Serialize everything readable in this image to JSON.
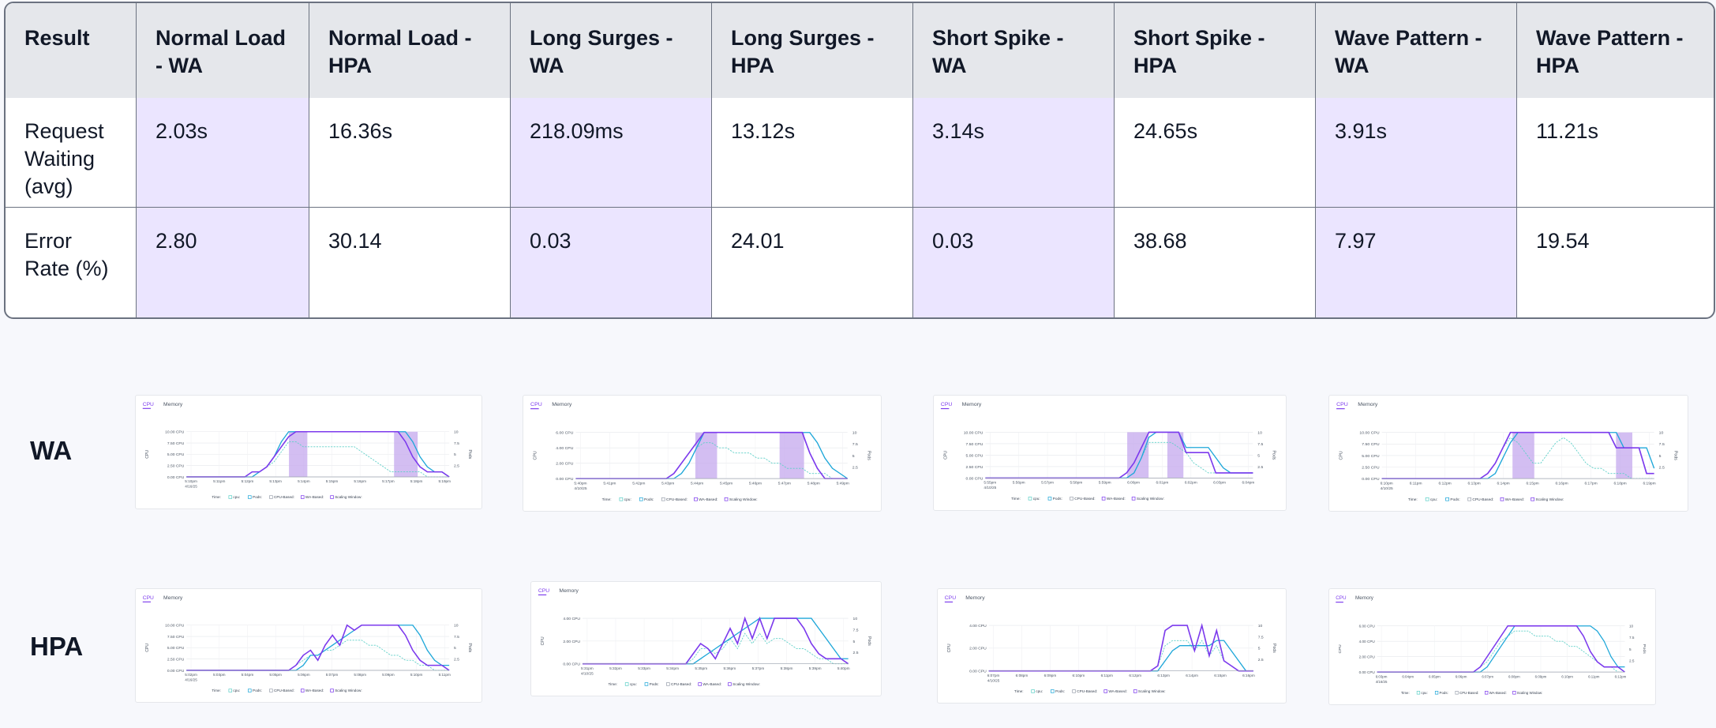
{
  "table": {
    "headers": [
      "Result",
      "Normal Load - WA",
      "Normal Load - HPA",
      "Long Surges - WA",
      "Long Surges - HPA",
      "Short Spike - WA",
      "Short Spike - HPA",
      "Wave Pattern - WA",
      "Wave Pattern - HPA"
    ],
    "rows": [
      {
        "label": "Request Waiting (avg)",
        "values": [
          "2.03s",
          "16.36s",
          "218.09ms",
          "13.12s",
          "3.14s",
          "24.65s",
          "3.91s",
          "11.21s"
        ]
      },
      {
        "label": "Error Rate (%)",
        "values": [
          "2.80",
          "30.14",
          "0.03",
          "24.01",
          "0.03",
          "38.68",
          "7.97",
          "19.54"
        ]
      }
    ]
  },
  "row_labels": {
    "wa": "WA",
    "hpa": "HPA"
  },
  "colors": {
    "highlight": "#ebe5ff",
    "header_bg": "#e5e7eb",
    "wa_line": "#7c3aed",
    "hpa_line": "#1ea7d9",
    "cpu_dashed": "#5fd0c8",
    "scaling_window": "#c4a8ee"
  },
  "chart_common": {
    "tabs": [
      "CPU",
      "Memory"
    ],
    "y_axis_label": "CPU",
    "y2_axis_label": "Pods",
    "y2_ticks": [
      "10",
      "7.5",
      "5",
      "2.5"
    ],
    "legend": [
      "Time:",
      "cpu:",
      "Pods:",
      "CPU-Based:",
      "WA-Based:",
      "Scaling Window:"
    ]
  },
  "chart_data": [
    {
      "type": "line",
      "name": "Normal Load - WA",
      "yticks": [
        "10.00 CPU",
        "7.50 CPU",
        "5.00 CPU",
        "2.50 CPU",
        "0.00 CPU"
      ],
      "xticks": [
        "5:10pm",
        "5:11pm",
        "5:12pm",
        "5:13pm",
        "5:14pm",
        "5:15pm",
        "5:16pm",
        "5:17pm",
        "5:18pm",
        "5:19pm"
      ],
      "date": "4/16/25",
      "series": {
        "wa": [
          0,
          0,
          0,
          0,
          0,
          0,
          0,
          0,
          0,
          1,
          1,
          2,
          4,
          6,
          8,
          9,
          9,
          9,
          9,
          9,
          9,
          9,
          9,
          9,
          9,
          9,
          9,
          9,
          9,
          9,
          7,
          4,
          2,
          1,
          1,
          1,
          0
        ],
        "hpa": [
          0,
          0,
          0,
          0,
          0,
          0,
          0,
          0,
          0,
          0,
          1,
          2,
          4,
          7,
          9,
          9,
          9,
          9,
          9,
          9,
          9,
          9,
          9,
          9,
          9,
          9,
          9,
          9,
          9,
          9,
          9,
          7,
          4,
          2,
          1,
          1,
          0
        ],
        "cpu": [
          0,
          0,
          0,
          0,
          0,
          0,
          0,
          0,
          0,
          0,
          1,
          2,
          3,
          5,
          7,
          7,
          6,
          6,
          6,
          6,
          6,
          6,
          6,
          6,
          5,
          4,
          3,
          2,
          1,
          1,
          1,
          1,
          1,
          0,
          0,
          0,
          0
        ]
      },
      "windows": [
        [
          0.39,
          0.46
        ],
        [
          0.79,
          0.88
        ]
      ]
    },
    {
      "type": "line",
      "name": "Long Surges - WA",
      "yticks": [
        "6.00 CPU",
        "4.00 CPU",
        "2.00 CPU",
        "0.00 CPU"
      ],
      "xticks": [
        "5:40pm",
        "5:41pm",
        "5:42pm",
        "5:43pm",
        "5:44pm",
        "5:45pm",
        "5:46pm",
        "5:47pm",
        "5:48pm",
        "5:49pm"
      ],
      "date": "4/10/25",
      "series": {
        "wa": [
          0,
          0,
          0,
          0,
          0,
          0,
          0,
          0,
          0,
          0,
          0,
          0,
          0,
          1,
          3,
          5,
          7,
          9,
          9,
          9,
          9,
          9,
          9,
          9,
          9,
          9,
          9,
          9,
          9,
          9,
          9,
          5,
          2,
          0,
          0,
          0,
          0
        ],
        "hpa": [
          0,
          0,
          0,
          0,
          0,
          0,
          0,
          0,
          0,
          0,
          0,
          0,
          0,
          0,
          1,
          3,
          6,
          9,
          9,
          9,
          9,
          9,
          9,
          9,
          9,
          9,
          9,
          9,
          9,
          9,
          9,
          9,
          7,
          4,
          2,
          1,
          0
        ],
        "cpu": [
          0,
          0,
          0,
          0,
          0,
          0,
          0,
          0,
          0,
          0,
          0,
          0,
          0,
          0,
          1,
          3,
          6,
          7,
          7,
          6,
          6,
          5,
          5,
          5,
          4,
          4,
          3,
          3,
          2,
          2,
          2,
          1,
          1,
          1,
          0,
          0,
          0
        ]
      },
      "windows": [
        [
          0.44,
          0.52
        ],
        [
          0.75,
          0.84
        ]
      ]
    },
    {
      "type": "line",
      "name": "Short Spike - WA",
      "yticks": [
        "10.00 CPU",
        "7.50 CPU",
        "5.00 CPU",
        "2.50 CPU",
        "0.00 CPU"
      ],
      "xticks": [
        "5:55pm",
        "5:56pm",
        "5:57pm",
        "5:58pm",
        "5:59pm",
        "6:00pm",
        "6:01pm",
        "6:02pm",
        "6:03pm",
        "6:04pm"
      ],
      "date": "4/10/25",
      "series": {
        "wa": [
          0,
          0,
          0,
          0,
          0,
          0,
          0,
          0,
          0,
          0,
          0,
          0,
          0,
          0,
          0,
          0,
          0,
          0,
          0,
          1,
          3,
          6,
          9,
          9,
          9,
          9,
          9,
          5,
          5,
          5,
          5,
          1,
          1,
          1,
          1,
          1,
          1
        ],
        "hpa": [
          0,
          0,
          0,
          0,
          0,
          0,
          0,
          0,
          0,
          0,
          0,
          0,
          0,
          0,
          0,
          0,
          0,
          0,
          0,
          0,
          1,
          4,
          8,
          9,
          9,
          9,
          9,
          6,
          6,
          6,
          6,
          4,
          2,
          1,
          1,
          1,
          1
        ],
        "cpu": [
          0,
          0,
          0,
          0,
          0,
          0,
          0,
          0,
          0,
          0,
          0,
          0,
          0,
          0,
          0,
          0,
          0,
          0,
          0,
          0,
          1,
          4,
          7,
          7,
          7,
          7,
          6,
          5,
          3,
          2,
          1,
          1,
          1,
          1,
          1,
          1,
          1
        ]
      },
      "windows": [
        [
          0.53,
          0.61
        ],
        [
          0.68,
          0.74
        ]
      ]
    },
    {
      "type": "line",
      "name": "Wave Pattern - WA",
      "yticks": [
        "10.00 CPU",
        "7.50 CPU",
        "5.00 CPU",
        "2.50 CPU",
        "0.00 CPU"
      ],
      "xticks": [
        "6:10pm",
        "6:11pm",
        "6:12pm",
        "6:13pm",
        "6:14pm",
        "6:15pm",
        "6:16pm",
        "6:17pm",
        "6:18pm",
        "6:19pm"
      ],
      "date": "4/10/25",
      "series": {
        "wa": [
          0,
          0,
          0,
          0,
          0,
          0,
          0,
          0,
          0,
          0,
          0,
          0,
          0,
          0,
          1,
          3,
          6,
          9,
          9,
          9,
          9,
          9,
          9,
          9,
          9,
          9,
          9,
          9,
          9,
          9,
          9,
          6,
          6,
          6,
          6,
          1,
          1
        ],
        "hpa": [
          0,
          0,
          0,
          0,
          0,
          0,
          0,
          0,
          0,
          0,
          0,
          0,
          0,
          0,
          0,
          1,
          4,
          7,
          9,
          9,
          9,
          9,
          9,
          9,
          9,
          9,
          9,
          9,
          9,
          9,
          9,
          9,
          6,
          6,
          6,
          6,
          2
        ],
        "cpu": [
          0,
          0,
          0,
          0,
          0,
          0,
          0,
          0,
          0,
          0,
          0,
          0,
          0,
          0,
          1,
          3,
          6,
          8,
          7,
          5,
          3,
          3,
          5,
          7,
          8,
          7,
          5,
          3,
          2,
          2,
          1,
          1,
          1,
          0,
          0,
          0,
          0
        ]
      },
      "windows": [
        [
          0.48,
          0.56
        ],
        [
          0.86,
          0.92
        ]
      ]
    },
    {
      "type": "line",
      "name": "Normal Load - HPA",
      "yticks": [
        "10.00 CPU",
        "7.50 CPU",
        "5.00 CPU",
        "2.50 CPU",
        "0.00 CPU"
      ],
      "xticks": [
        "5:02pm",
        "5:03pm",
        "5:04pm",
        "5:05pm",
        "5:06pm",
        "5:07pm",
        "5:08pm",
        "5:09pm",
        "5:10pm",
        "5:11pm"
      ],
      "date": "4/16/25",
      "series": {
        "wa": [
          0,
          0,
          0,
          0,
          0,
          0,
          0,
          0,
          0,
          0,
          0,
          0,
          0,
          0,
          0,
          1,
          3,
          4,
          2,
          5,
          7,
          5,
          9,
          8,
          9,
          9,
          9,
          9,
          9,
          9,
          7,
          4,
          2,
          1,
          1,
          1,
          0
        ],
        "hpa": [
          0,
          0,
          0,
          0,
          0,
          0,
          0,
          0,
          0,
          0,
          0,
          0,
          0,
          0,
          0,
          0,
          1,
          3,
          3,
          4,
          5,
          6,
          7,
          8,
          9,
          9,
          9,
          9,
          9,
          9,
          9,
          9,
          7,
          4,
          2,
          1,
          1
        ],
        "cpu": [
          0,
          0,
          0,
          0,
          0,
          0,
          0,
          0,
          0,
          0,
          0,
          0,
          0,
          0,
          0,
          1,
          2,
          3,
          3,
          4,
          4,
          5,
          6,
          6,
          6,
          5,
          5,
          4,
          3,
          3,
          2,
          2,
          1,
          1,
          0,
          0,
          0
        ]
      },
      "windows": []
    },
    {
      "type": "line",
      "name": "Long Surges - HPA",
      "yticks": [
        "4.00 CPU",
        "2.00 CPU",
        "0.00 CPU"
      ],
      "xticks": [
        "5:31pm",
        "5:32pm",
        "5:33pm",
        "5:34pm",
        "5:35pm",
        "5:36pm",
        "5:37pm",
        "5:38pm",
        "5:39pm",
        "5:40pm"
      ],
      "date": "4/10/25",
      "series": {
        "wa": [
          0,
          0,
          0,
          0,
          0,
          0,
          0,
          0,
          0,
          0,
          0,
          0,
          0,
          0,
          0,
          2,
          4,
          3,
          1,
          4,
          7,
          4,
          9,
          5,
          9,
          5,
          9,
          9,
          9,
          9,
          7,
          4,
          2,
          1,
          1,
          1,
          0
        ],
        "hpa": [
          0,
          0,
          0,
          0,
          0,
          0,
          0,
          0,
          0,
          0,
          0,
          0,
          0,
          0,
          0,
          0,
          1,
          2,
          3,
          4,
          5,
          6,
          7,
          8,
          9,
          9,
          9,
          9,
          9,
          9,
          9,
          9,
          7,
          5,
          3,
          1,
          1
        ],
        "cpu": [
          0,
          0,
          0,
          0,
          0,
          0,
          0,
          0,
          0,
          0,
          0,
          0,
          0,
          0,
          0,
          1,
          3,
          3,
          2,
          3,
          5,
          3,
          6,
          4,
          6,
          4,
          5,
          5,
          4,
          3,
          3,
          2,
          1,
          1,
          0,
          0,
          0
        ]
      },
      "windows": []
    },
    {
      "type": "line",
      "name": "Short Spike - HPA",
      "yticks": [
        "4.00 CPU",
        "2.00 CPU",
        "0.00 CPU"
      ],
      "xticks": [
        "6:07pm",
        "6:08pm",
        "6:09pm",
        "6:10pm",
        "6:11pm",
        "6:12pm",
        "6:13pm",
        "6:14pm",
        "6:15pm",
        "6:16pm"
      ],
      "date": "4/10/25",
      "series": {
        "wa": [
          0,
          0,
          0,
          0,
          0,
          0,
          0,
          0,
          0,
          0,
          0,
          0,
          0,
          0,
          0,
          0,
          0,
          0,
          0,
          0,
          0,
          0,
          0,
          1,
          8,
          9,
          9,
          9,
          4,
          9,
          3,
          8,
          2,
          1,
          0,
          0,
          0
        ],
        "hpa": [
          0,
          0,
          0,
          0,
          0,
          0,
          0,
          0,
          0,
          0,
          0,
          0,
          0,
          0,
          0,
          0,
          0,
          0,
          0,
          0,
          0,
          0,
          0,
          0,
          2,
          4,
          5,
          5,
          5,
          5,
          5,
          6,
          6,
          4,
          2,
          0,
          0
        ],
        "cpu": [
          0,
          0,
          0,
          0,
          0,
          0,
          0,
          0,
          0,
          0,
          0,
          0,
          0,
          0,
          0,
          0,
          0,
          0,
          0,
          0,
          0,
          0,
          0,
          1,
          5,
          6,
          6,
          6,
          4,
          6,
          3,
          5,
          2,
          1,
          0,
          0,
          0
        ]
      },
      "windows": []
    },
    {
      "type": "line",
      "name": "Wave Pattern - HPA",
      "yticks": [
        "6.00 CPU",
        "4.00 CPU",
        "2.00 CPU",
        "0.00 CPU"
      ],
      "xticks": [
        "6:03pm",
        "6:04pm",
        "6:05pm",
        "6:06pm",
        "6:07pm",
        "6:08pm",
        "6:09pm",
        "6:10pm",
        "6:11pm",
        "6:12pm"
      ],
      "date": "4/16/25",
      "series": {
        "wa": [
          0,
          0,
          0,
          0,
          0,
          0,
          0,
          0,
          0,
          0,
          0,
          0,
          0,
          0,
          0,
          1,
          3,
          5,
          7,
          9,
          9,
          9,
          9,
          9,
          9,
          9,
          9,
          9,
          9,
          9,
          7,
          4,
          2,
          1,
          1,
          1,
          0
        ],
        "hpa": [
          0,
          0,
          0,
          0,
          0,
          0,
          0,
          0,
          0,
          0,
          0,
          0,
          0,
          0,
          0,
          0,
          1,
          3,
          5,
          7,
          9,
          9,
          9,
          9,
          9,
          9,
          9,
          9,
          9,
          9,
          9,
          9,
          8,
          6,
          3,
          1,
          1
        ],
        "cpu": [
          0,
          0,
          0,
          0,
          0,
          0,
          0,
          0,
          0,
          0,
          0,
          0,
          0,
          0,
          0,
          1,
          2,
          4,
          6,
          7,
          8,
          8,
          8,
          7,
          7,
          7,
          6,
          6,
          5,
          5,
          4,
          3,
          2,
          1,
          1,
          0,
          0
        ]
      },
      "windows": []
    }
  ]
}
